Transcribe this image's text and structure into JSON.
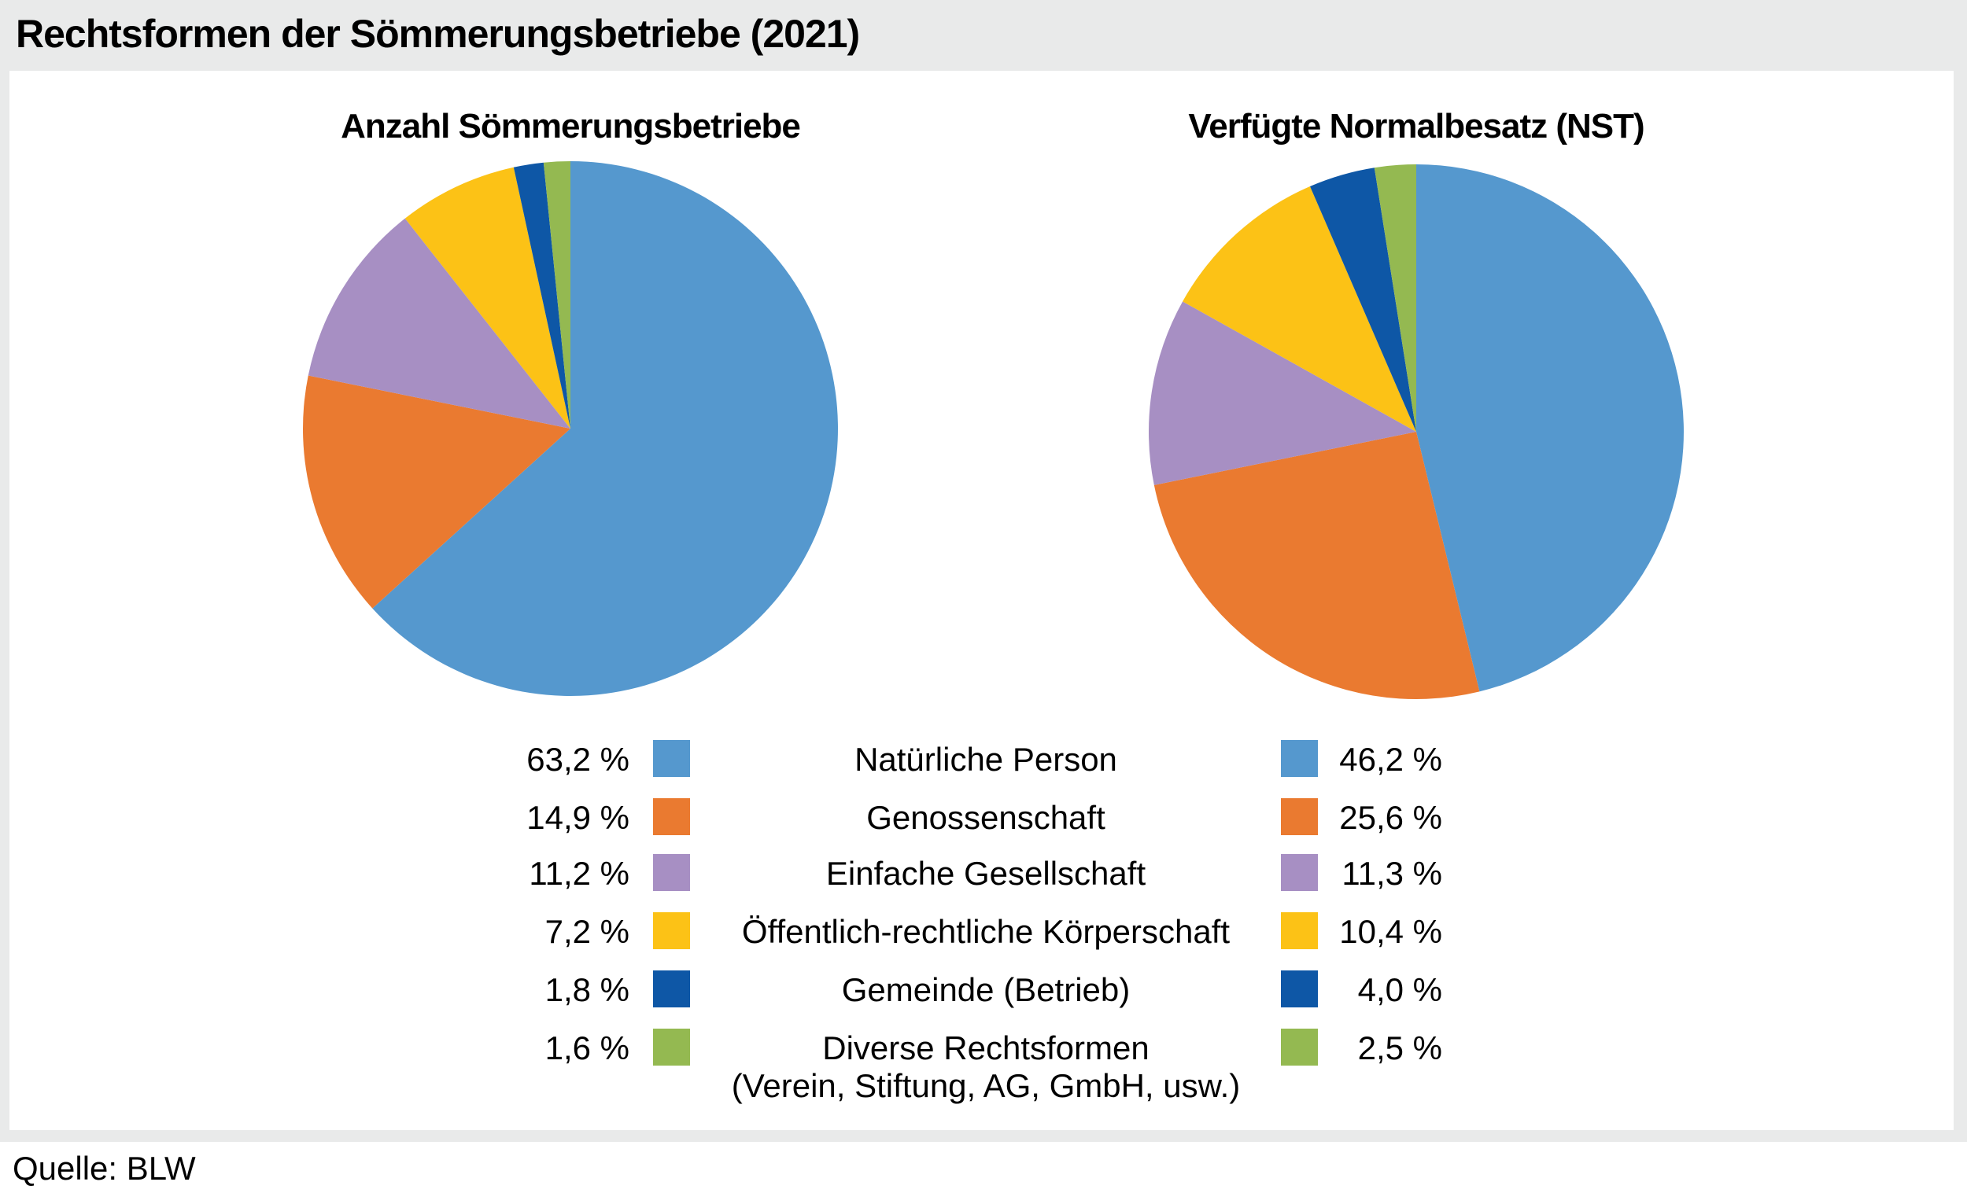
{
  "page": {
    "title": "Rechtsformen der Sömmerungsbetriebe (2021)",
    "source": "Quelle: BLW",
    "background_gray": "#E9EAEA",
    "panel_background": "#FFFFFF"
  },
  "charts": {
    "left": {
      "title": "Anzahl Sömmerungsbetriebe"
    },
    "right": {
      "title": "Verfügte Normalbesatz (NST)"
    }
  },
  "legend": {
    "rows": [
      {
        "left_pct": "63,2 %",
        "color": "#5598CE",
        "label": "Natürliche Person",
        "right_pct": "46,2 %"
      },
      {
        "left_pct": "14,9 %",
        "color": "#EA7A30",
        "label": "Genossenschaft",
        "right_pct": "25,6 %"
      },
      {
        "left_pct": "11,2 %",
        "color": "#A78FC3",
        "label": "Einfache Gesellschaft",
        "right_pct": "11,3 %"
      },
      {
        "left_pct": "7,2 %",
        "color": "#FCC216",
        "label": "Öffentlich-rechtliche Körperschaft",
        "right_pct": "10,4 %"
      },
      {
        "left_pct": "1,8 %",
        "color": "#0E57A6",
        "label": "Gemeinde (Betrieb)",
        "right_pct": "4,0 %"
      },
      {
        "left_pct": "1,6 %",
        "color": "#94B951",
        "label": "Diverse Rechtsformen",
        "label_line2": "(Verein, Stiftung, AG, GmbH, usw.)",
        "right_pct": "2,5 %"
      }
    ]
  },
  "chart_data": [
    {
      "type": "pie",
      "title": "Anzahl Sömmerungsbetriebe",
      "categories": [
        "Natürliche Person",
        "Genossenschaft",
        "Einfache Gesellschaft",
        "Öffentlich-rechtliche Körperschaft",
        "Gemeinde (Betrieb)",
        "Diverse Rechtsformen (Verein, Stiftung, AG, GmbH, usw.)"
      ],
      "values": [
        63.2,
        14.9,
        11.2,
        7.2,
        1.8,
        1.6
      ],
      "unit": "%",
      "colors": [
        "#5598CE",
        "#EA7A30",
        "#A78FC3",
        "#FCC216",
        "#0E57A6",
        "#94B951"
      ],
      "start_angle_deg": 0,
      "direction": "clockwise",
      "legend_position": "below-center"
    },
    {
      "type": "pie",
      "title": "Verfügte Normalbesatz (NST)",
      "categories": [
        "Natürliche Person",
        "Genossenschaft",
        "Einfache Gesellschaft",
        "Öffentlich-rechtliche Körperschaft",
        "Gemeinde (Betrieb)",
        "Diverse Rechtsformen (Verein, Stiftung, AG, GmbH, usw.)"
      ],
      "values": [
        46.2,
        25.6,
        11.3,
        10.4,
        4.0,
        2.5
      ],
      "unit": "%",
      "colors": [
        "#5598CE",
        "#EA7A30",
        "#A78FC3",
        "#FCC216",
        "#0E57A6",
        "#94B951"
      ],
      "start_angle_deg": 0,
      "direction": "clockwise",
      "legend_position": "below-center"
    }
  ]
}
